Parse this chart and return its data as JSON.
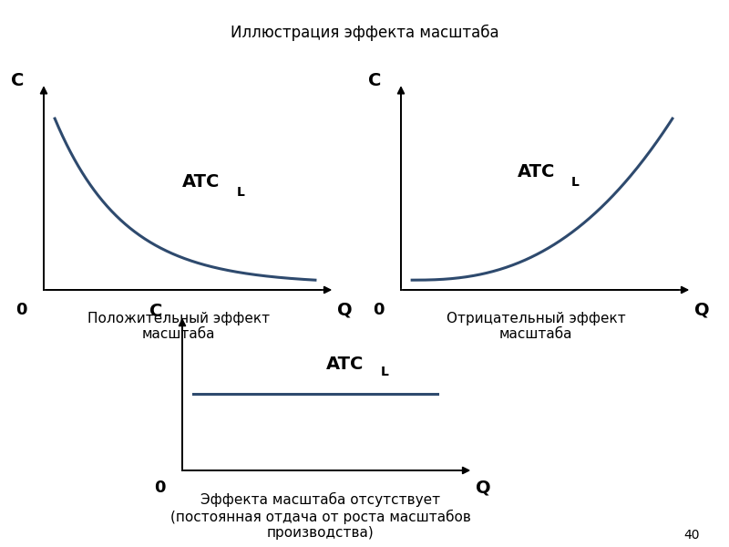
{
  "title": "Иллюстрация эффекта масштаба",
  "title_fontsize": 12,
  "curve_color": "#2e4a6e",
  "curve_linewidth": 2.2,
  "axis_color": "#000000",
  "text_color": "#000000",
  "background_color": "#ffffff",
  "label_C": "C",
  "label_Q": "Q",
  "label_0": "0",
  "caption1": "Положительный эффект\nмасштаба",
  "caption2": "Отрицательный эффект\nмасштаба",
  "caption3": "Эффекта масштаба отсутствует\n(постоянная отдача от роста масштабов\nпроизводства)",
  "page_number": "40",
  "caption_fontsize": 11,
  "atc_main_fontsize": 14,
  "atc_sub_fontsize": 10,
  "axis_label_fontsize": 14,
  "zero_fontsize": 13
}
